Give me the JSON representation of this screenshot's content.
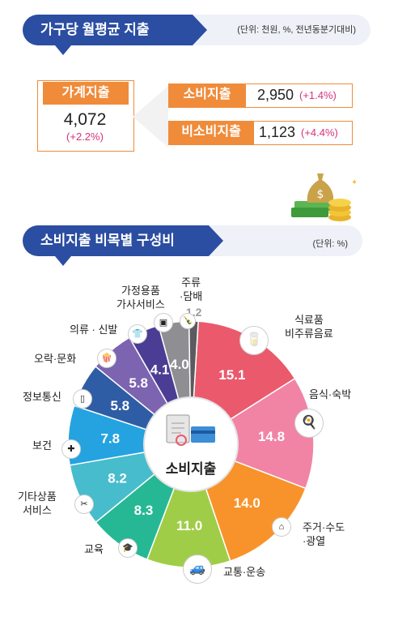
{
  "header1": {
    "title": "가구당 월평균 지출",
    "unit": "(단위: 천원, %, 전년동분기대비)"
  },
  "household": {
    "label": "가계지출",
    "value": "4,072",
    "change": "(+2.2%)",
    "consumption": {
      "label": "소비지출",
      "value": "2,950",
      "change": "(+1.4%)"
    },
    "nonconsumption": {
      "label": "비소비지출",
      "value": "1,123",
      "change": "(+4.4%)"
    }
  },
  "header2": {
    "title": "소비지출 비목별 구성비",
    "unit": "(단위: %)"
  },
  "center_label": "소비지출",
  "chart_data": {
    "type": "pie",
    "title": "소비지출 비목별 구성비",
    "unit": "%",
    "slices": [
      {
        "name": "식료품·비주류음료",
        "value": 15.1,
        "value_label": "15.1",
        "color": "#ea5a6c",
        "icon": "groceries-icon"
      },
      {
        "name": "음식·숙박",
        "value": 14.8,
        "value_label": "14.8",
        "color": "#f184a5",
        "icon": "meal-plate-icon"
      },
      {
        "name": "주거·수도·광열",
        "value": 14.0,
        "value_label": "14.0",
        "color": "#f8932b",
        "icon": "house-icon"
      },
      {
        "name": "교통·운송",
        "value": 11.0,
        "value_label": "11.0",
        "color": "#a0cd48",
        "icon": "car-icon"
      },
      {
        "name": "교육",
        "value": 8.3,
        "value_label": "8.3",
        "color": "#26b894",
        "icon": "graduation-cap-icon"
      },
      {
        "name": "기타상품 서비스",
        "value": 8.2,
        "value_label": "8.2",
        "color": "#47bccc",
        "icon": "hair-scissors-icon"
      },
      {
        "name": "보건",
        "value": 7.8,
        "value_label": "7.8",
        "color": "#24a3e0",
        "icon": "first-aid-icon"
      },
      {
        "name": "정보통신",
        "value": 5.8,
        "value_label": "5.8",
        "color": "#2f5da5",
        "icon": "smartphone-icon"
      },
      {
        "name": "오락·문화",
        "value": 5.8,
        "value_label": "5.8",
        "color": "#7c64b1",
        "icon": "popcorn-icon"
      },
      {
        "name": "의류·신발",
        "value": 4.1,
        "value_label": "4.1",
        "color": "#4b3d94",
        "icon": "shirt-icon"
      },
      {
        "name": "가정용품 가사서비스",
        "value": 4.0,
        "value_label": "4.0",
        "color": "#8f8f93",
        "icon": "appliance-icon"
      },
      {
        "name": "주류·담배",
        "value": 1.2,
        "value_label": "1.2",
        "color": "#5b5b5f",
        "icon": "bottle-icon"
      }
    ]
  },
  "slice_labels": [
    [
      "식료품",
      "비주류음료"
    ],
    [
      "음식·숙박"
    ],
    [
      "주거·수도",
      "·광열"
    ],
    [
      "교통·운송"
    ],
    [
      "교육"
    ],
    [
      "기타상품",
      "서비스"
    ],
    [
      "보건"
    ],
    [
      "정보통신"
    ],
    [
      "오락·문화"
    ],
    [
      "의류 · 신발"
    ],
    [
      "가정용품",
      "가사서비스"
    ],
    [
      "주류",
      "·담배"
    ]
  ]
}
